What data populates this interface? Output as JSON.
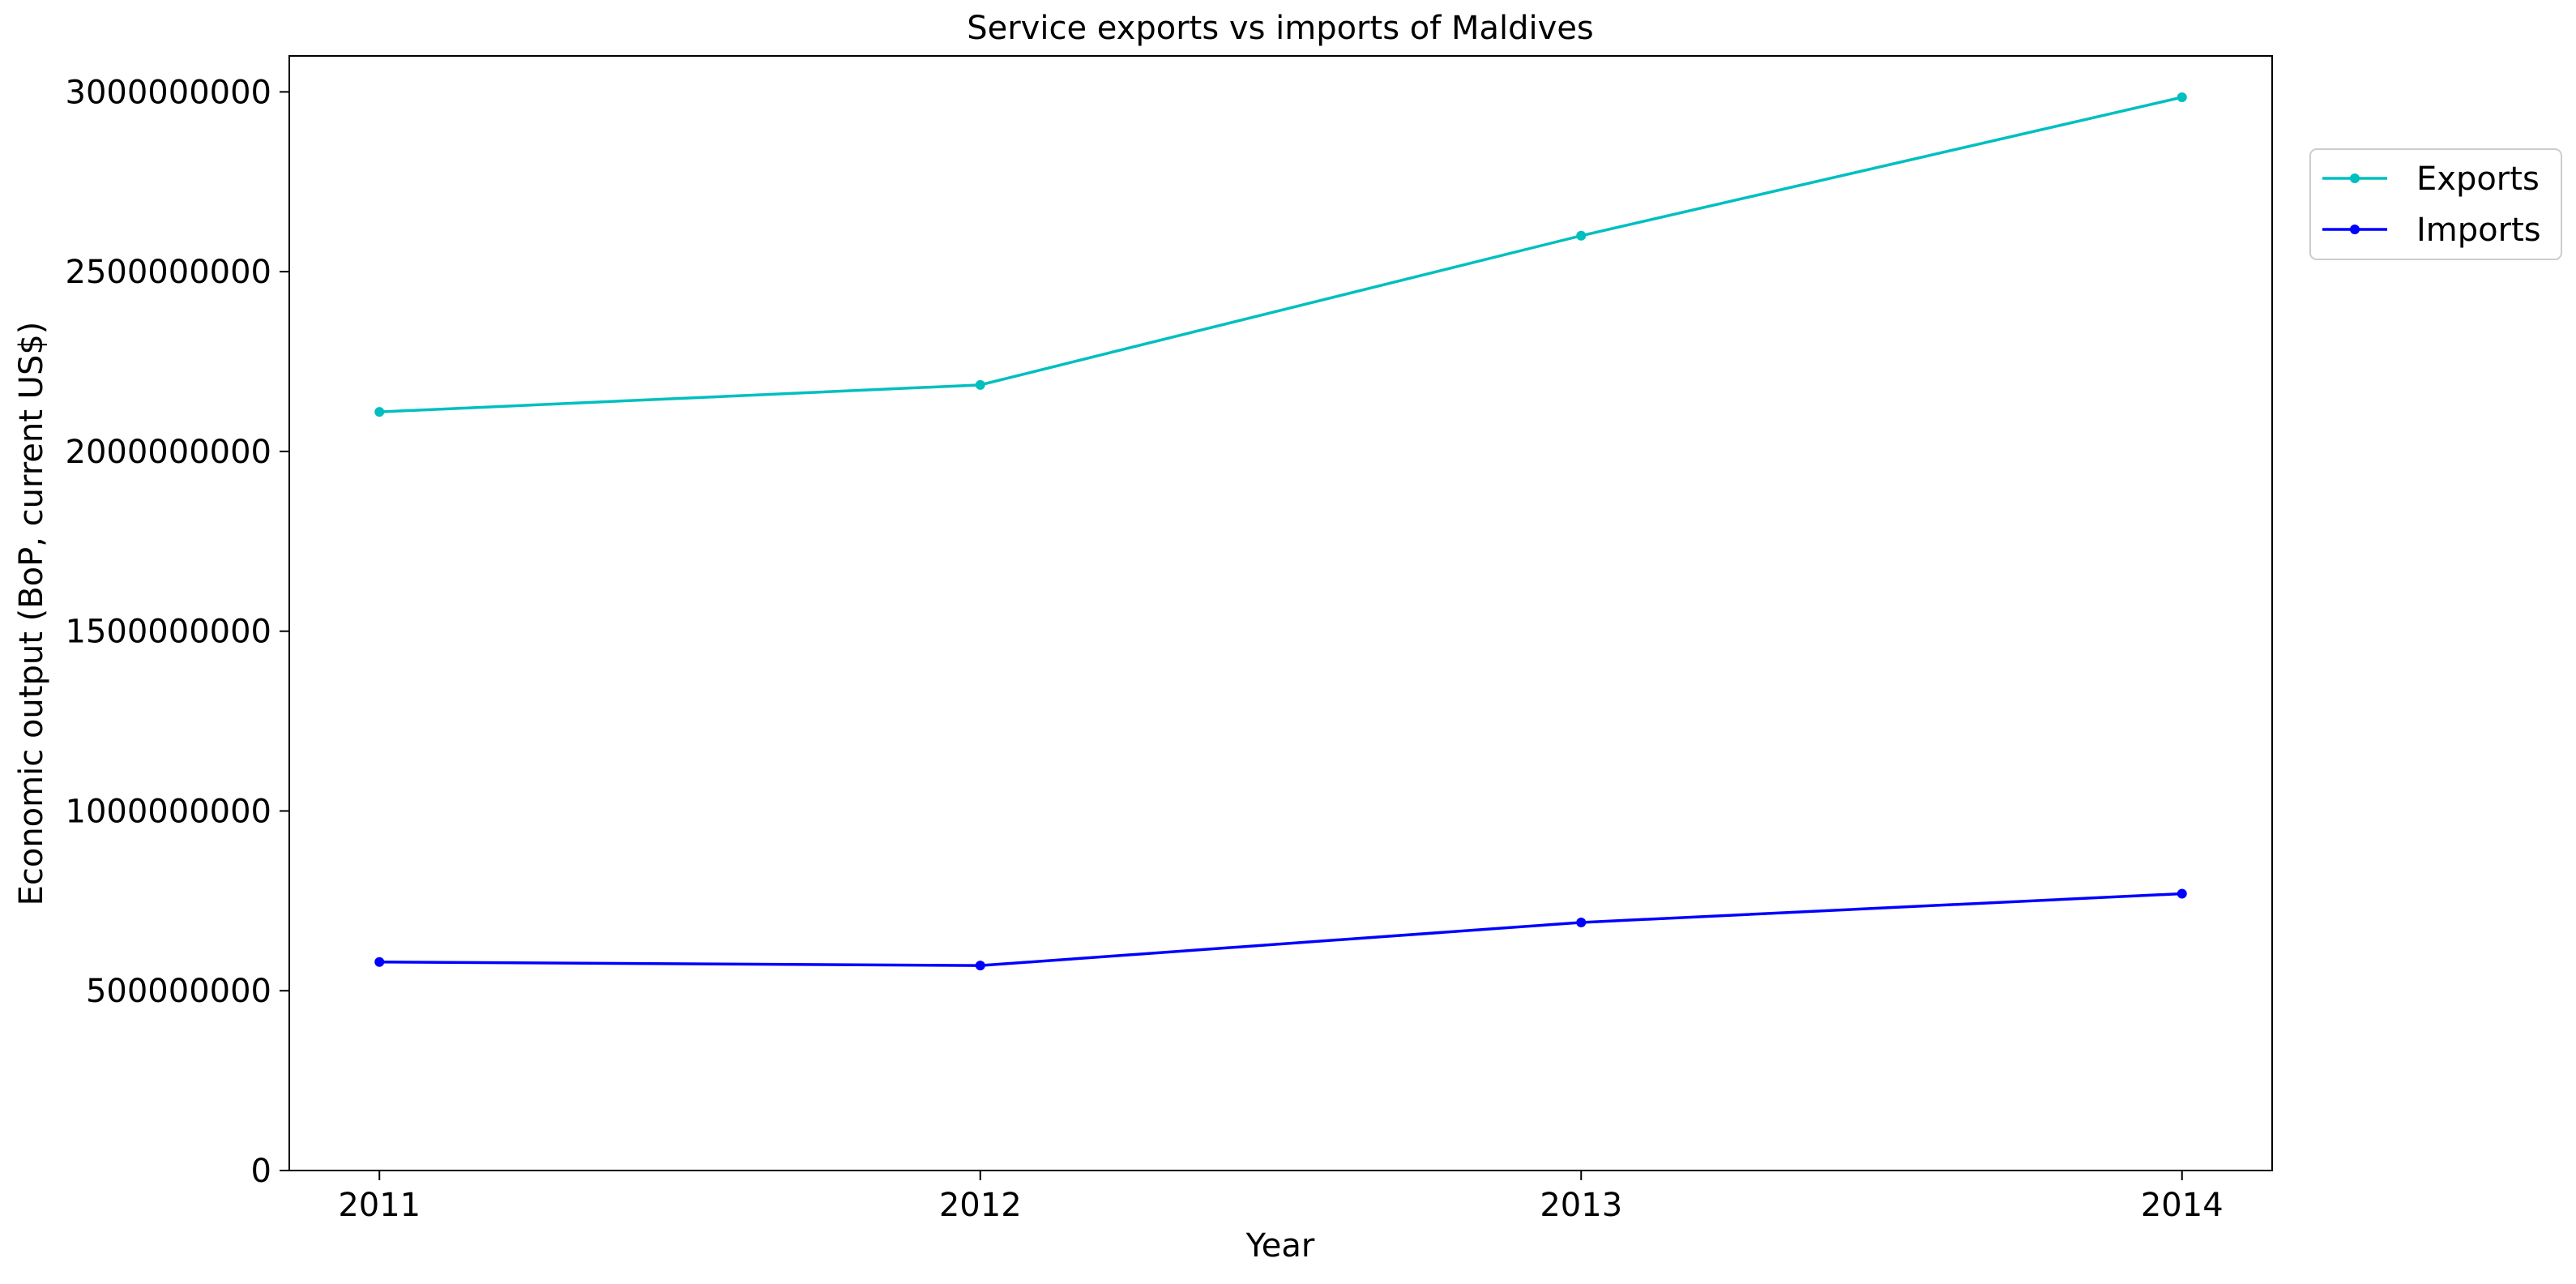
{
  "chart_data": {
    "type": "line",
    "title": "Service exports vs imports of Maldives",
    "xlabel": "Year",
    "ylabel": "Economic output (BoP, current US$)",
    "x": [
      2011,
      2012,
      2013,
      2014
    ],
    "x_tick_labels": [
      "2011",
      "2012",
      "2013",
      "2014"
    ],
    "y_tick_values": [
      0,
      500000000,
      1000000000,
      1500000000,
      2000000000,
      2500000000,
      3000000000
    ],
    "y_tick_labels": [
      "0",
      "500000000",
      "1000000000",
      "1500000000",
      "2000000000",
      "2500000000",
      "3000000000"
    ],
    "xlim": [
      2010.85,
      2014.15
    ],
    "ylim": [
      0,
      3100000000
    ],
    "grid": false,
    "legend_position": "top-right outside",
    "series": [
      {
        "name": "Exports",
        "color": "#00bfbf",
        "values": [
          2110000000,
          2185000000,
          2600000000,
          2985000000
        ]
      },
      {
        "name": "Imports",
        "color": "#0000ff",
        "values": [
          580000000,
          570000000,
          690000000,
          770000000
        ]
      }
    ]
  }
}
